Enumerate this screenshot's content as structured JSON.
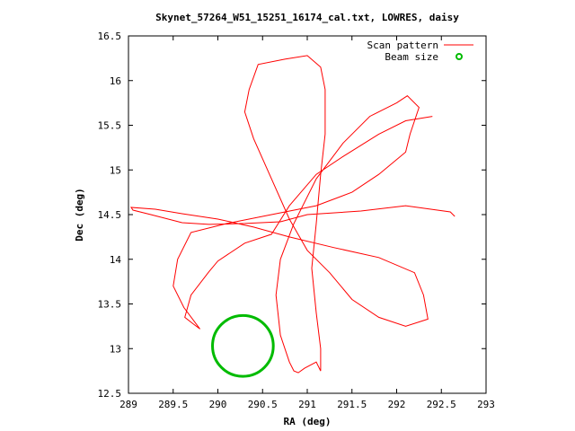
{
  "chart_data": {
    "type": "line",
    "title": "Skynet_57264_W51_15251_16174_cal.txt, LOWRES, daisy",
    "xlabel": "RA (deg)",
    "ylabel": "Dec (deg)",
    "xlim": [
      289,
      293
    ],
    "ylim": [
      12.5,
      16.5
    ],
    "x_ticks": [
      "289",
      "289.5",
      "290",
      "290.5",
      "291",
      "291.5",
      "292",
      "292.5",
      "293"
    ],
    "y_ticks": [
      "12.5",
      "13",
      "13.5",
      "14",
      "14.5",
      "15",
      "15.5",
      "16",
      "16.5"
    ],
    "legend_position": "top-right",
    "grid": false,
    "series": [
      {
        "name": "Scan pattern",
        "color": "#ff0000",
        "style": "line",
        "points": [
          [
            292.65,
            14.48
          ],
          [
            292.6,
            14.53
          ],
          [
            292.1,
            14.6
          ],
          [
            291.6,
            14.54
          ],
          [
            291.0,
            14.5
          ],
          [
            290.7,
            14.42
          ],
          [
            290.3,
            14.4
          ],
          [
            289.9,
            14.39
          ],
          [
            289.6,
            14.41
          ],
          [
            289.25,
            14.5
          ],
          [
            289.05,
            14.55
          ],
          [
            289.03,
            14.58
          ],
          [
            289.3,
            14.56
          ],
          [
            289.6,
            14.51
          ],
          [
            290.0,
            14.45
          ],
          [
            290.4,
            14.36
          ],
          [
            290.8,
            14.25
          ],
          [
            291.3,
            14.13
          ],
          [
            291.8,
            14.02
          ],
          [
            292.2,
            13.85
          ],
          [
            292.3,
            13.6
          ],
          [
            292.35,
            13.33
          ],
          [
            292.1,
            13.25
          ],
          [
            291.8,
            13.35
          ],
          [
            291.5,
            13.55
          ],
          [
            291.25,
            13.85
          ],
          [
            291.0,
            14.1
          ],
          [
            290.8,
            14.45
          ],
          [
            290.6,
            14.9
          ],
          [
            290.4,
            15.35
          ],
          [
            290.3,
            15.65
          ],
          [
            290.35,
            15.9
          ],
          [
            290.45,
            16.18
          ],
          [
            290.75,
            16.24
          ],
          [
            291.0,
            16.28
          ],
          [
            291.15,
            16.15
          ],
          [
            291.2,
            15.9
          ],
          [
            291.2,
            15.4
          ],
          [
            291.15,
            14.95
          ],
          [
            291.1,
            14.4
          ],
          [
            291.05,
            13.9
          ],
          [
            291.1,
            13.4
          ],
          [
            291.15,
            13.0
          ],
          [
            291.15,
            12.75
          ],
          [
            291.1,
            12.85
          ],
          [
            290.97,
            12.78
          ],
          [
            290.9,
            12.73
          ],
          [
            290.85,
            12.75
          ],
          [
            290.8,
            12.85
          ],
          [
            290.7,
            13.15
          ],
          [
            290.65,
            13.6
          ],
          [
            290.7,
            14.0
          ],
          [
            290.85,
            14.4
          ],
          [
            291.1,
            14.9
          ],
          [
            291.4,
            15.3
          ],
          [
            291.7,
            15.6
          ],
          [
            292.0,
            15.75
          ],
          [
            292.12,
            15.83
          ],
          [
            292.25,
            15.7
          ],
          [
            292.15,
            15.4
          ],
          [
            292.1,
            15.2
          ],
          [
            291.8,
            14.95
          ],
          [
            291.5,
            14.75
          ],
          [
            291.1,
            14.6
          ],
          [
            290.6,
            14.5
          ],
          [
            290.1,
            14.4
          ],
          [
            289.7,
            14.3
          ],
          [
            289.55,
            14.0
          ],
          [
            289.5,
            13.7
          ],
          [
            289.62,
            13.46
          ],
          [
            289.8,
            13.22
          ],
          [
            289.72,
            13.28
          ],
          [
            289.63,
            13.35
          ],
          [
            289.7,
            13.6
          ],
          [
            289.9,
            13.86
          ],
          [
            290.0,
            13.98
          ],
          [
            290.3,
            14.18
          ],
          [
            290.6,
            14.28
          ],
          [
            290.8,
            14.6
          ],
          [
            291.1,
            14.95
          ],
          [
            291.4,
            15.15
          ],
          [
            291.8,
            15.4
          ],
          [
            292.1,
            15.55
          ],
          [
            292.4,
            15.6
          ]
        ]
      },
      {
        "name": "Beam size",
        "color": "#00bb00",
        "style": "circle",
        "center": [
          290.28,
          13.03
        ],
        "radius": 0.34
      }
    ]
  }
}
